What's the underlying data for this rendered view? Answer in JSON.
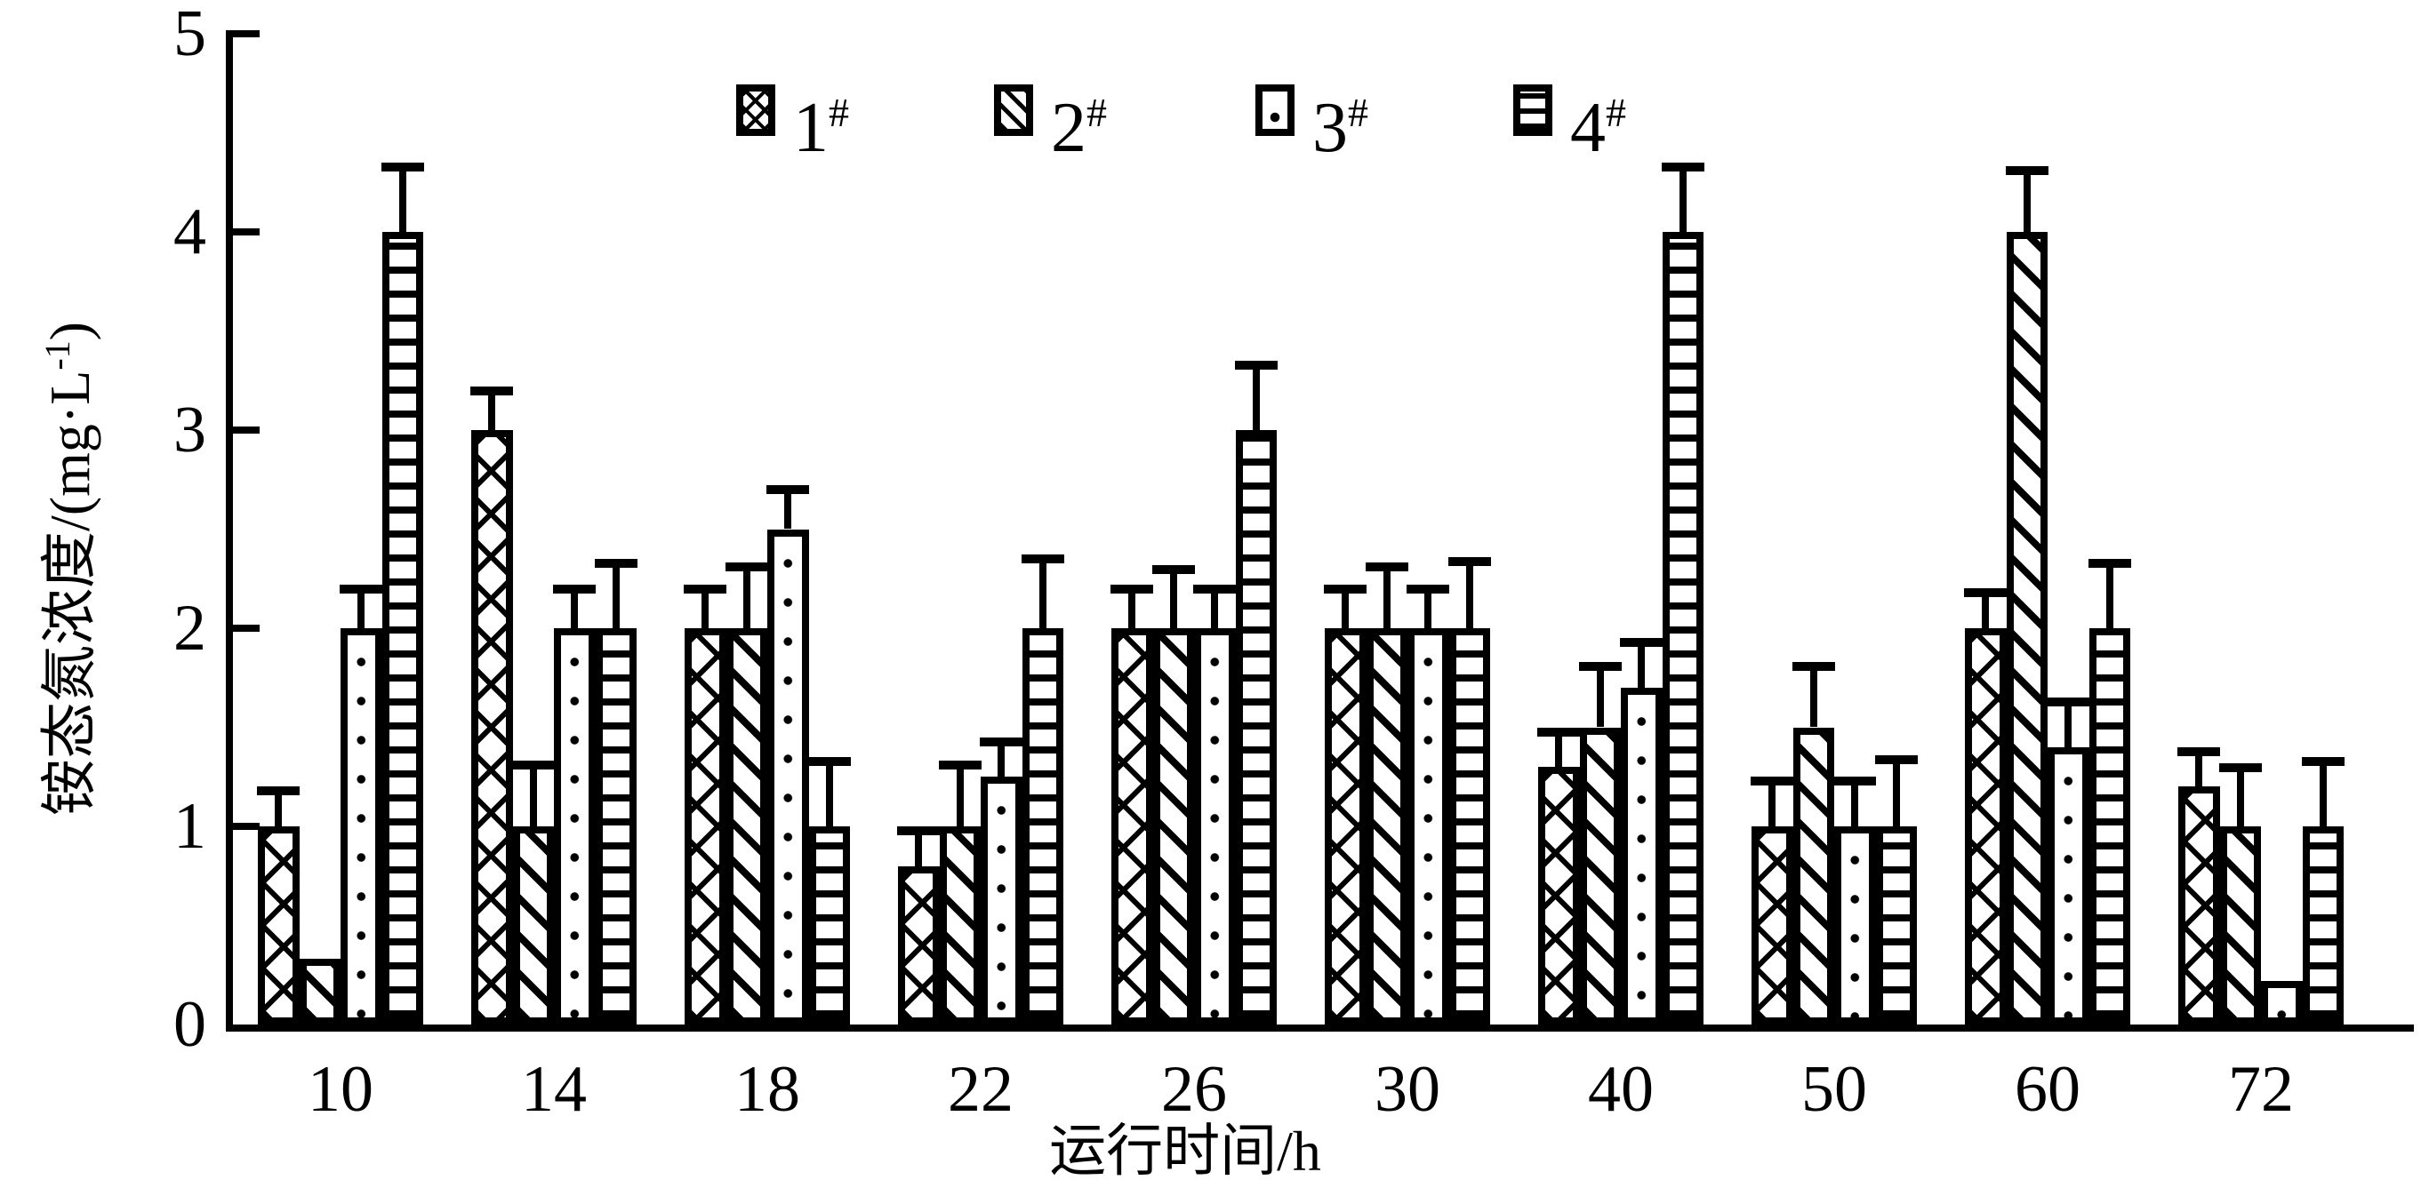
{
  "figure": {
    "x_axis_title": "运行时间/h",
    "y_axis_title": {
      "pre": "铵态氮浓度/(mg·L",
      "sup": "-1",
      "post": ")"
    },
    "background_color": "#ffffff",
    "ink_color": "#000000"
  },
  "legend": {
    "position": "top-center",
    "items": [
      {
        "num": "1",
        "sup": "#",
        "pattern": "crosshatch"
      },
      {
        "num": "2",
        "sup": "#",
        "pattern": "diagonal"
      },
      {
        "num": "3",
        "sup": "#",
        "pattern": "dots"
      },
      {
        "num": "4",
        "sup": "#",
        "pattern": "horizontal-lines"
      }
    ]
  },
  "chart_data": {
    "type": "bar",
    "title": "",
    "xlabel": "运行时间/h",
    "ylabel": "铵态氮浓度/(mg·L-1)",
    "ylim": [
      0,
      5
    ],
    "yticks": [
      0,
      1,
      2,
      3,
      4,
      5
    ],
    "grid": false,
    "legend_position": "top-center",
    "categories": [
      "10",
      "14",
      "18",
      "22",
      "26",
      "30",
      "40",
      "50",
      "60",
      "72"
    ],
    "series": [
      {
        "name": "1#",
        "pattern": "crosshatch",
        "values": [
          1.0,
          3.0,
          2.0,
          0.8,
          2.0,
          2.0,
          1.3,
          1.0,
          2.0,
          1.2
        ],
        "errors": [
          0.2,
          0.22,
          0.22,
          0.2,
          0.22,
          0.22,
          0.2,
          0.25,
          0.2,
          0.2
        ]
      },
      {
        "name": "2#",
        "pattern": "diagonal",
        "values": [
          0.33,
          1.0,
          2.0,
          1.0,
          2.0,
          2.0,
          1.5,
          1.5,
          4.0,
          1.0
        ],
        "errors": [
          0,
          0.33,
          0.33,
          0.33,
          0.32,
          0.33,
          0.33,
          0.33,
          0.33,
          0.32
        ]
      },
      {
        "name": "3#",
        "pattern": "dots",
        "values": [
          2.0,
          2.0,
          2.5,
          1.25,
          2.0,
          2.0,
          1.7,
          1.0,
          1.4,
          0.22
        ],
        "errors": [
          0.22,
          0.22,
          0.22,
          0.2,
          0.22,
          0.22,
          0.25,
          0.25,
          0.25,
          0
        ]
      },
      {
        "name": "4#",
        "pattern": "horizontal-lines",
        "values": [
          4.0,
          2.0,
          1.0,
          2.0,
          3.0,
          2.0,
          4.0,
          1.0,
          2.0,
          1.0
        ],
        "errors": [
          0.35,
          0.35,
          0.35,
          0.37,
          0.35,
          0.36,
          0.35,
          0.36,
          0.35,
          0.35
        ]
      }
    ]
  }
}
